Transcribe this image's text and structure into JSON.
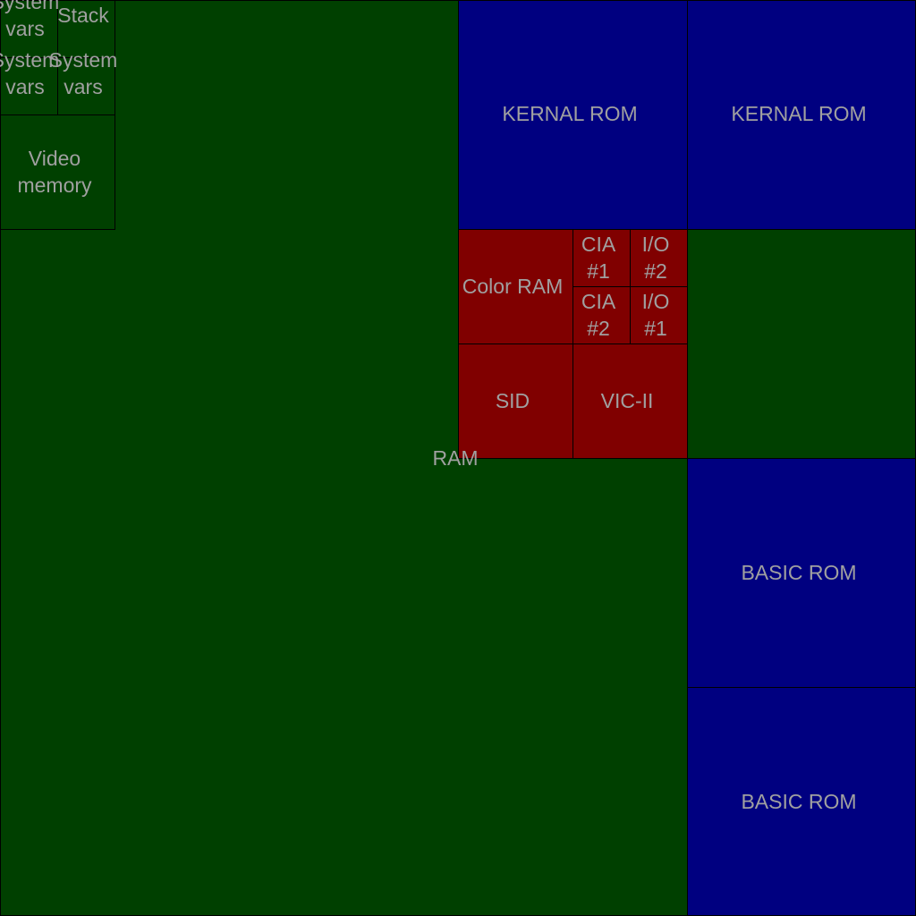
{
  "diagram": {
    "colors": {
      "ram": "#004000",
      "rom": "#000080",
      "io": "#800000",
      "text": "#a0a0a0",
      "border": "#000000"
    },
    "blocks": {
      "ram": {
        "label": "RAM",
        "kind": "ram"
      },
      "system_vars_a": {
        "label": "System\nvars",
        "kind": "ram"
      },
      "stack": {
        "label": "Stack",
        "kind": "ram"
      },
      "system_vars_b": {
        "label": "System\nvars",
        "kind": "ram"
      },
      "system_vars_c": {
        "label": "System\nvars",
        "kind": "ram"
      },
      "video_memory": {
        "label": "Video\nmemory",
        "kind": "ram"
      },
      "kernal_rom_a": {
        "label": "KERNAL ROM",
        "kind": "rom"
      },
      "kernal_rom_b": {
        "label": "KERNAL ROM",
        "kind": "rom"
      },
      "color_ram": {
        "label": "Color RAM",
        "kind": "io"
      },
      "cia_1": {
        "label": "CIA\n#1",
        "kind": "io"
      },
      "io_2": {
        "label": "I/O\n#2",
        "kind": "io"
      },
      "cia_2": {
        "label": "CIA\n#2",
        "kind": "io"
      },
      "io_1": {
        "label": "I/O\n#1",
        "kind": "io"
      },
      "sid": {
        "label": "SID",
        "kind": "io"
      },
      "vic_ii": {
        "label": "VIC-II",
        "kind": "io"
      },
      "ram_unlabeled": {
        "label": "",
        "kind": "ram"
      },
      "basic_rom_a": {
        "label": "BASIC ROM",
        "kind": "rom"
      },
      "basic_rom_b": {
        "label": "BASIC ROM",
        "kind": "rom"
      }
    }
  }
}
